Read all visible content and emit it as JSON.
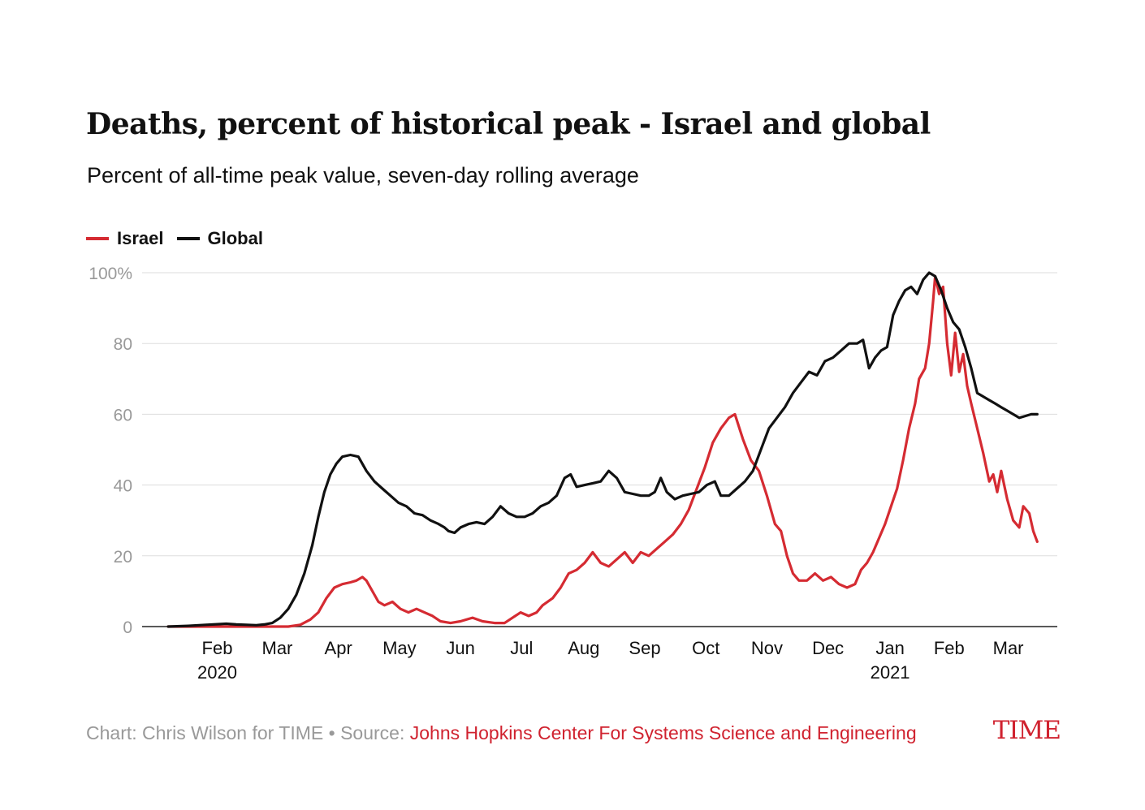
{
  "colors": {
    "israel": "#d52b32",
    "global": "#111111",
    "grid": "#dddddd",
    "axis_text": "#999999",
    "accent": "#d0222f"
  },
  "chart_data": {
    "type": "line",
    "title": "Deaths, percent of historical peak - Israel and global",
    "subtitle": "Percent of all-time peak value, seven-day rolling average",
    "xlabel": "",
    "ylabel": "",
    "ylim": [
      0,
      100
    ],
    "yticks": [
      "0",
      "20",
      "40",
      "60",
      "80",
      "100%"
    ],
    "ytick_values": [
      0,
      20,
      40,
      60,
      80,
      100
    ],
    "grid": true,
    "legend_position": "top-left",
    "x_months": [
      {
        "label": "Feb",
        "year": "2020",
        "x": "2020-02-01"
      },
      {
        "label": "Mar",
        "year": "",
        "x": "2020-03-01"
      },
      {
        "label": "Apr",
        "year": "",
        "x": "2020-04-01"
      },
      {
        "label": "May",
        "year": "",
        "x": "2020-05-01"
      },
      {
        "label": "Jun",
        "year": "",
        "x": "2020-06-01"
      },
      {
        "label": "Jul",
        "year": "",
        "x": "2020-07-01"
      },
      {
        "label": "Aug",
        "year": "",
        "x": "2020-08-01"
      },
      {
        "label": "Sep",
        "year": "",
        "x": "2020-09-01"
      },
      {
        "label": "Oct",
        "year": "",
        "x": "2020-10-01"
      },
      {
        "label": "Nov",
        "year": "",
        "x": "2020-11-01"
      },
      {
        "label": "Dec",
        "year": "",
        "x": "2020-12-01"
      },
      {
        "label": "Jan",
        "year": "2021",
        "x": "2021-01-01"
      },
      {
        "label": "Feb",
        "year": "",
        "x": "2021-02-01"
      },
      {
        "label": "Mar",
        "year": "",
        "x": "2021-03-01"
      }
    ],
    "series": [
      {
        "name": "Israel",
        "color": "#d52b32",
        "points": [
          [
            "2020-01-22",
            0
          ],
          [
            "2020-02-15",
            0
          ],
          [
            "2020-03-01",
            0
          ],
          [
            "2020-03-15",
            0
          ],
          [
            "2020-03-22",
            0
          ],
          [
            "2020-03-28",
            0.5
          ],
          [
            "2020-04-02",
            2
          ],
          [
            "2020-04-06",
            4
          ],
          [
            "2020-04-10",
            8
          ],
          [
            "2020-04-14",
            11
          ],
          [
            "2020-04-18",
            12
          ],
          [
            "2020-04-22",
            12.5
          ],
          [
            "2020-04-25",
            13
          ],
          [
            "2020-04-28",
            14
          ],
          [
            "2020-04-30",
            13
          ],
          [
            "2020-05-03",
            10
          ],
          [
            "2020-05-06",
            7
          ],
          [
            "2020-05-09",
            6
          ],
          [
            "2020-05-13",
            7
          ],
          [
            "2020-05-17",
            5
          ],
          [
            "2020-05-21",
            4
          ],
          [
            "2020-05-25",
            5
          ],
          [
            "2020-05-29",
            4
          ],
          [
            "2020-06-02",
            3
          ],
          [
            "2020-06-06",
            1.5
          ],
          [
            "2020-06-11",
            1
          ],
          [
            "2020-06-16",
            1.5
          ],
          [
            "2020-06-22",
            2.5
          ],
          [
            "2020-06-27",
            1.5
          ],
          [
            "2020-07-03",
            1
          ],
          [
            "2020-07-08",
            1
          ],
          [
            "2020-07-12",
            2.5
          ],
          [
            "2020-07-16",
            4
          ],
          [
            "2020-07-20",
            3
          ],
          [
            "2020-07-24",
            4
          ],
          [
            "2020-07-27",
            6
          ],
          [
            "2020-08-01",
            8
          ],
          [
            "2020-08-05",
            11
          ],
          [
            "2020-08-09",
            15
          ],
          [
            "2020-08-13",
            16
          ],
          [
            "2020-08-17",
            18
          ],
          [
            "2020-08-21",
            21
          ],
          [
            "2020-08-25",
            18
          ],
          [
            "2020-08-29",
            17
          ],
          [
            "2020-09-02",
            19
          ],
          [
            "2020-09-06",
            21
          ],
          [
            "2020-09-10",
            18
          ],
          [
            "2020-09-14",
            21
          ],
          [
            "2020-09-18",
            20
          ],
          [
            "2020-09-22",
            22
          ],
          [
            "2020-09-26",
            24
          ],
          [
            "2020-09-30",
            26
          ],
          [
            "2020-10-04",
            29
          ],
          [
            "2020-10-08",
            33
          ],
          [
            "2020-10-12",
            39
          ],
          [
            "2020-10-16",
            45
          ],
          [
            "2020-10-20",
            52
          ],
          [
            "2020-10-24",
            56
          ],
          [
            "2020-10-28",
            59
          ],
          [
            "2020-10-31",
            60
          ],
          [
            "2020-11-04",
            53
          ],
          [
            "2020-11-08",
            47
          ],
          [
            "2020-11-12",
            44
          ],
          [
            "2020-11-16",
            37
          ],
          [
            "2020-11-20",
            29
          ],
          [
            "2020-11-23",
            27
          ],
          [
            "2020-11-26",
            20
          ],
          [
            "2020-11-29",
            15
          ],
          [
            "2020-12-02",
            13
          ],
          [
            "2020-12-06",
            13
          ],
          [
            "2020-12-10",
            15
          ],
          [
            "2020-12-14",
            13
          ],
          [
            "2020-12-18",
            14
          ],
          [
            "2020-12-22",
            12
          ],
          [
            "2020-12-26",
            11
          ],
          [
            "2020-12-30",
            12
          ],
          [
            "2021-01-02",
            16
          ],
          [
            "2021-01-05",
            18
          ],
          [
            "2021-01-08",
            21
          ],
          [
            "2021-01-11",
            25
          ],
          [
            "2021-01-14",
            29
          ],
          [
            "2021-01-17",
            34
          ],
          [
            "2021-01-20",
            39
          ],
          [
            "2021-01-23",
            47
          ],
          [
            "2021-01-26",
            56
          ],
          [
            "2021-01-29",
            63
          ],
          [
            "2021-01-31",
            70
          ],
          [
            "2021-02-03",
            73
          ],
          [
            "2021-02-05",
            80
          ],
          [
            "2021-02-07",
            92
          ],
          [
            "2021-02-08",
            99
          ],
          [
            "2021-02-10",
            94
          ],
          [
            "2021-02-12",
            96
          ],
          [
            "2021-02-14",
            80
          ],
          [
            "2021-02-16",
            71
          ],
          [
            "2021-02-18",
            83
          ],
          [
            "2021-02-20",
            72
          ],
          [
            "2021-02-22",
            77
          ],
          [
            "2021-02-24",
            68
          ],
          [
            "2021-02-26",
            63
          ],
          [
            "2021-03-01",
            56
          ],
          [
            "2021-03-04",
            49
          ],
          [
            "2021-03-07",
            41
          ],
          [
            "2021-03-09",
            43
          ],
          [
            "2021-03-11",
            38
          ],
          [
            "2021-03-13",
            44
          ],
          [
            "2021-03-16",
            36
          ],
          [
            "2021-03-19",
            30
          ],
          [
            "2021-03-22",
            28
          ],
          [
            "2021-03-24",
            34
          ],
          [
            "2021-03-27",
            32
          ],
          [
            "2021-03-29",
            27
          ],
          [
            "2021-03-31",
            24
          ]
        ]
      },
      {
        "name": "Global",
        "color": "#111111",
        "points": [
          [
            "2020-01-22",
            0
          ],
          [
            "2020-02-01",
            0.2
          ],
          [
            "2020-02-10",
            0.5
          ],
          [
            "2020-02-20",
            0.8
          ],
          [
            "2020-02-25",
            0.6
          ],
          [
            "2020-03-01",
            0.5
          ],
          [
            "2020-03-06",
            0.4
          ],
          [
            "2020-03-10",
            0.6
          ],
          [
            "2020-03-14",
            1
          ],
          [
            "2020-03-18",
            2.5
          ],
          [
            "2020-03-22",
            5
          ],
          [
            "2020-03-26",
            9
          ],
          [
            "2020-03-30",
            15
          ],
          [
            "2020-04-03",
            23
          ],
          [
            "2020-04-06",
            31
          ],
          [
            "2020-04-09",
            38
          ],
          [
            "2020-04-12",
            43
          ],
          [
            "2020-04-15",
            46
          ],
          [
            "2020-04-18",
            48
          ],
          [
            "2020-04-22",
            48.5
          ],
          [
            "2020-04-26",
            48
          ],
          [
            "2020-04-30",
            44
          ],
          [
            "2020-05-04",
            41
          ],
          [
            "2020-05-08",
            39
          ],
          [
            "2020-05-12",
            37
          ],
          [
            "2020-05-16",
            35
          ],
          [
            "2020-05-20",
            34
          ],
          [
            "2020-05-24",
            32
          ],
          [
            "2020-05-28",
            31.5
          ],
          [
            "2020-06-01",
            30
          ],
          [
            "2020-06-05",
            29
          ],
          [
            "2020-06-08",
            28
          ],
          [
            "2020-06-10",
            27
          ],
          [
            "2020-06-13",
            26.5
          ],
          [
            "2020-06-16",
            28
          ],
          [
            "2020-06-20",
            29
          ],
          [
            "2020-06-24",
            29.5
          ],
          [
            "2020-06-28",
            29
          ],
          [
            "2020-07-02",
            31
          ],
          [
            "2020-07-06",
            34
          ],
          [
            "2020-07-10",
            32
          ],
          [
            "2020-07-14",
            31
          ],
          [
            "2020-07-18",
            31
          ],
          [
            "2020-07-22",
            32
          ],
          [
            "2020-07-26",
            34
          ],
          [
            "2020-07-30",
            35
          ],
          [
            "2020-08-03",
            37
          ],
          [
            "2020-08-07",
            42
          ],
          [
            "2020-08-10",
            43
          ],
          [
            "2020-08-13",
            39.5
          ],
          [
            "2020-08-17",
            40
          ],
          [
            "2020-08-21",
            40.5
          ],
          [
            "2020-08-25",
            41
          ],
          [
            "2020-08-29",
            44
          ],
          [
            "2020-09-02",
            42
          ],
          [
            "2020-09-06",
            38
          ],
          [
            "2020-09-10",
            37.5
          ],
          [
            "2020-09-14",
            37
          ],
          [
            "2020-09-18",
            37
          ],
          [
            "2020-09-21",
            38
          ],
          [
            "2020-09-24",
            42
          ],
          [
            "2020-09-27",
            38
          ],
          [
            "2020-10-01",
            36
          ],
          [
            "2020-10-05",
            37
          ],
          [
            "2020-10-09",
            37.5
          ],
          [
            "2020-10-13",
            38
          ],
          [
            "2020-10-17",
            40
          ],
          [
            "2020-10-21",
            41
          ],
          [
            "2020-10-24",
            37
          ],
          [
            "2020-10-28",
            37
          ],
          [
            "2020-11-01",
            39
          ],
          [
            "2020-11-05",
            41
          ],
          [
            "2020-11-09",
            44
          ],
          [
            "2020-11-13",
            50
          ],
          [
            "2020-11-17",
            56
          ],
          [
            "2020-11-21",
            59
          ],
          [
            "2020-11-25",
            62
          ],
          [
            "2020-11-29",
            66
          ],
          [
            "2020-12-03",
            69
          ],
          [
            "2020-12-07",
            72
          ],
          [
            "2020-12-11",
            71
          ],
          [
            "2020-12-15",
            75
          ],
          [
            "2020-12-19",
            76
          ],
          [
            "2020-12-23",
            78
          ],
          [
            "2020-12-27",
            80
          ],
          [
            "2020-12-31",
            80
          ],
          [
            "2021-01-03",
            81
          ],
          [
            "2021-01-06",
            73
          ],
          [
            "2021-01-09",
            76
          ],
          [
            "2021-01-12",
            78
          ],
          [
            "2021-01-15",
            79
          ],
          [
            "2021-01-18",
            88
          ],
          [
            "2021-01-21",
            92
          ],
          [
            "2021-01-24",
            95
          ],
          [
            "2021-01-27",
            96
          ],
          [
            "2021-01-30",
            94
          ],
          [
            "2021-02-02",
            98
          ],
          [
            "2021-02-05",
            100
          ],
          [
            "2021-02-08",
            99
          ],
          [
            "2021-02-11",
            95
          ],
          [
            "2021-02-14",
            90
          ],
          [
            "2021-02-17",
            86
          ],
          [
            "2021-02-20",
            84
          ],
          [
            "2021-02-23",
            79
          ],
          [
            "2021-02-26",
            73
          ],
          [
            "2021-03-01",
            66
          ],
          [
            "2021-03-04",
            65
          ],
          [
            "2021-03-07",
            64
          ],
          [
            "2021-03-10",
            63
          ],
          [
            "2021-03-13",
            62
          ],
          [
            "2021-03-16",
            61
          ],
          [
            "2021-03-19",
            60
          ],
          [
            "2021-03-22",
            59
          ],
          [
            "2021-03-25",
            59.5
          ],
          [
            "2021-03-28",
            60
          ],
          [
            "2021-03-31",
            60
          ]
        ]
      }
    ]
  },
  "footer": {
    "credit": "Chart: Chris Wilson for TIME • Source: ",
    "source": "Johns Hopkins Center For Systems Science and Engineering"
  },
  "logo": {
    "text": "TIME"
  }
}
